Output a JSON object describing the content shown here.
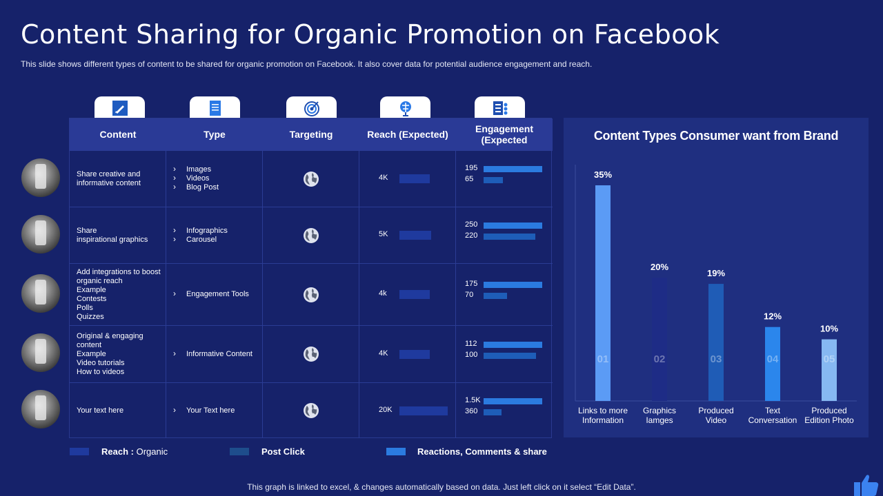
{
  "title": "Content Sharing for Organic Promotion on Facebook",
  "subtitle": "This slide shows different types of content to be shared for organic promotion on Facebook. It also cover data for potential audience engagement and reach.",
  "table": {
    "headers": [
      "Content",
      "Type",
      "Targeting",
      "Reach (Expected)",
      "Engagement (Expected"
    ],
    "rows": [
      {
        "content": "Share creative and\ninformative content",
        "types": [
          "Images",
          "Videos",
          "Blog Post"
        ],
        "reach": "4K",
        "reach_value": 4,
        "eng_top": "195",
        "eng_bottom": "65",
        "eng_top_value": 195,
        "eng_bottom_value": 65
      },
      {
        "content": "Share\ninspirational graphics",
        "types": [
          "Infographics",
          "Carousel"
        ],
        "reach": "5K",
        "reach_value": 5,
        "eng_top": "250",
        "eng_bottom": "220",
        "eng_top_value": 250,
        "eng_bottom_value": 220
      },
      {
        "content": "Add integrations to boost\norganic reach\nExample\nContests\nPolls\nQuizzes",
        "types": [
          "Engagement Tools"
        ],
        "reach": "4k",
        "reach_value": 4,
        "eng_top": "175",
        "eng_bottom": "70",
        "eng_top_value": 175,
        "eng_bottom_value": 70
      },
      {
        "content": "Original & engaging\ncontent\nExample\nVideo tutorials\nHow to videos",
        "types": [
          "Informative Content"
        ],
        "reach": "4K",
        "reach_value": 4,
        "eng_top": "112",
        "eng_bottom": "100",
        "eng_top_value": 112,
        "eng_bottom_value": 100
      },
      {
        "content": "Your text here",
        "types": [
          "Your Text here"
        ],
        "reach": "20K",
        "reach_value": 20,
        "eng_top": "1.5K",
        "eng_bottom": "360",
        "eng_top_value": 1500,
        "eng_bottom_value": 360
      }
    ]
  },
  "icons": [
    "edit-icon",
    "document-icon",
    "target-icon",
    "network-tree-icon",
    "dashboard-icon"
  ],
  "legend": {
    "reach_label": "Reach :",
    "reach_sub": "Organic",
    "post_click": "Post Click",
    "reactions": "Reactions, Comments & share"
  },
  "colors": {
    "background": "#16226a",
    "panel": "#1f2f80",
    "reach_bar": "#1f3a9e",
    "post_click": "#1e4d8c",
    "reactions": "#2b7be0"
  },
  "chart_data": {
    "type": "bar",
    "title": "Content Types Consumer want from Brand",
    "categories": [
      "Links to more Information",
      "Graphics Iamges",
      "Produced Video",
      "Text Conversation",
      "Produced Edition Photo"
    ],
    "category_lines": [
      [
        "Links to more",
        "Information"
      ],
      [
        "Graphics",
        "Iamges"
      ],
      [
        "Produced",
        "Video"
      ],
      [
        "Text",
        "Conversation"
      ],
      [
        "Produced",
        "Edition Photo"
      ]
    ],
    "values": [
      35,
      20,
      19,
      12,
      10
    ],
    "value_labels": [
      "35%",
      "20%",
      "19%",
      "12%",
      "10%"
    ],
    "bar_numbers": [
      "01",
      "02",
      "03",
      "04",
      "05"
    ],
    "bar_colors": [
      "#5b9bf5",
      "#1e2c86",
      "#1f5cb6",
      "#2b86ec",
      "#86b8f2"
    ],
    "ylim": [
      0,
      35
    ],
    "grid": false
  },
  "footer": "This graph is linked to excel, & changes automatically based on data. Just left click on it select “Edit Data”."
}
